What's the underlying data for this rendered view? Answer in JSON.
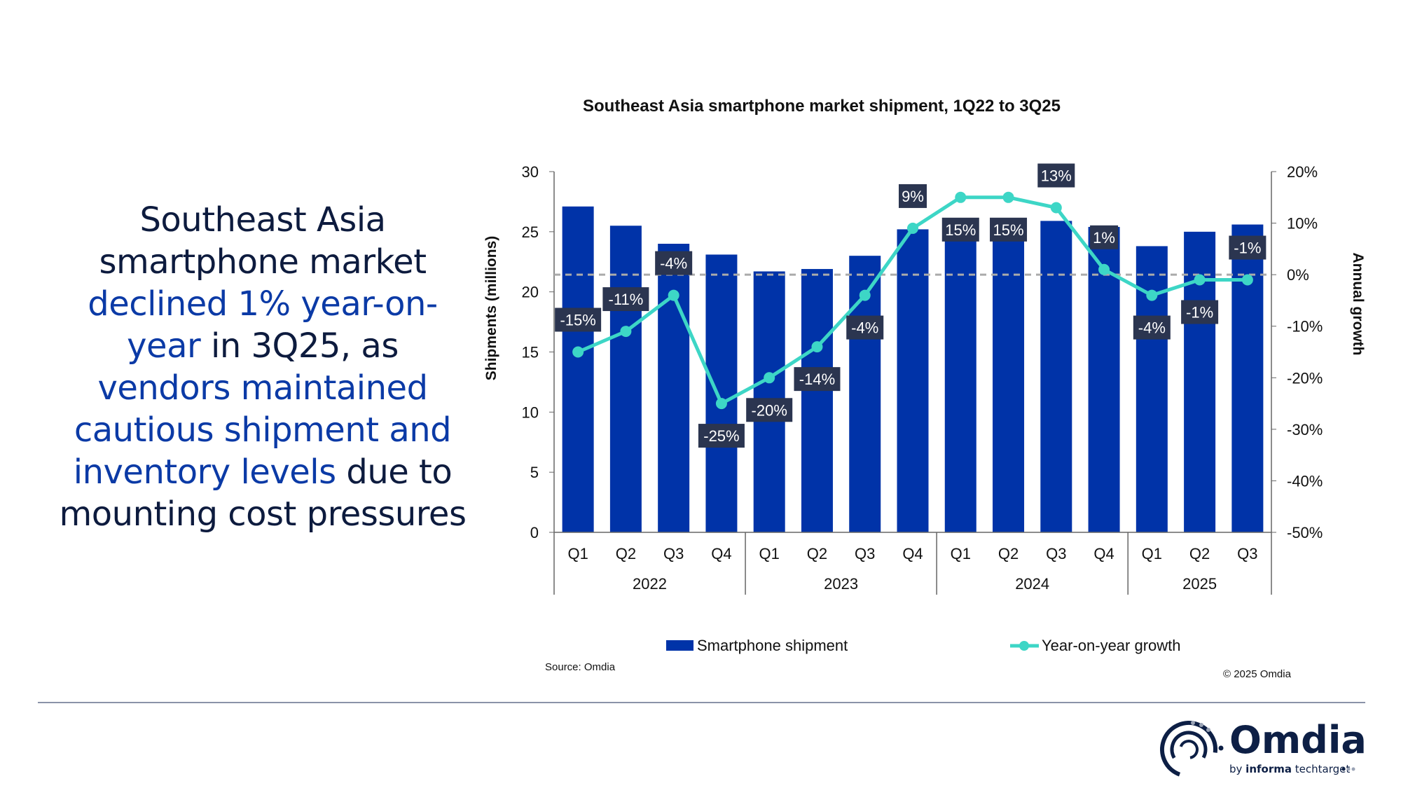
{
  "headline": {
    "lines": [
      [
        {
          "text": "Southeast Asia",
          "highlight": false
        }
      ],
      [
        {
          "text": "smartphone market",
          "highlight": false
        }
      ],
      [
        {
          "text": "declined 1% year-on-",
          "highlight": true
        }
      ],
      [
        {
          "text": "year",
          "highlight": true
        },
        {
          "text": " in 3Q25, as",
          "highlight": false
        }
      ],
      [
        {
          "text": "vendors maintained",
          "highlight": true
        }
      ],
      [
        {
          "text": "cautious shipment and",
          "highlight": true
        }
      ],
      [
        {
          "text": "inventory levels",
          "highlight": true
        },
        {
          "text": " due to",
          "highlight": false
        }
      ],
      [
        {
          "text": "mounting cost pressures",
          "highlight": false
        }
      ]
    ]
  },
  "chart_data": {
    "type": "bar+line",
    "title": "Southeast Asia smartphone market shipment, 1Q22 to 3Q25",
    "categories": [
      "Q1",
      "Q2",
      "Q3",
      "Q4",
      "Q1",
      "Q2",
      "Q3",
      "Q4",
      "Q1",
      "Q2",
      "Q3",
      "Q4",
      "Q1",
      "Q2",
      "Q3"
    ],
    "years": [
      {
        "label": "2022",
        "count": 4
      },
      {
        "label": "2023",
        "count": 4
      },
      {
        "label": "2024",
        "count": 4
      },
      {
        "label": "2025",
        "count": 3
      }
    ],
    "ylabel": "Shipments (millions)",
    "ylim": [
      0,
      30
    ],
    "yticks": [
      0,
      5,
      10,
      15,
      20,
      25,
      30
    ],
    "y2label": "Annual growth",
    "y2lim": [
      -50,
      20
    ],
    "y2ticks": [
      "-50%",
      "-40%",
      "-30%",
      "-20%",
      "-10%",
      "0%",
      "10%",
      "20%"
    ],
    "series": [
      {
        "name": "Smartphone shipment",
        "type": "bar",
        "color": "#0033a8",
        "values": [
          27.1,
          25.5,
          24.0,
          23.1,
          21.7,
          21.9,
          23.0,
          25.2,
          25.0,
          25.2,
          25.9,
          25.4,
          23.8,
          25.0,
          25.6
        ]
      },
      {
        "name": "Year-on-year growth",
        "type": "line",
        "axis": "right",
        "color": "#3dd6c6",
        "values": [
          -15,
          -11,
          -4,
          -25,
          -20,
          -14,
          -4,
          9,
          15,
          15,
          13,
          1,
          -4,
          -1,
          -1
        ],
        "labels": [
          "-15%",
          "-11%",
          "-4%",
          "-25%",
          "-20%",
          "-14%",
          "-4%",
          "9%",
          "15%",
          "15%",
          "13%",
          "1%",
          "-4%",
          "-1%",
          "-1%"
        ]
      }
    ],
    "legend": "bottom",
    "zero_line": "dashed gray"
  },
  "source": "Source: Omdia",
  "copyright": "© 2025 Omdia",
  "logo": {
    "name": "Omdia",
    "tagline_pre": "by ",
    "tagline_bold": "informa",
    "tagline_post": " techtarget"
  }
}
